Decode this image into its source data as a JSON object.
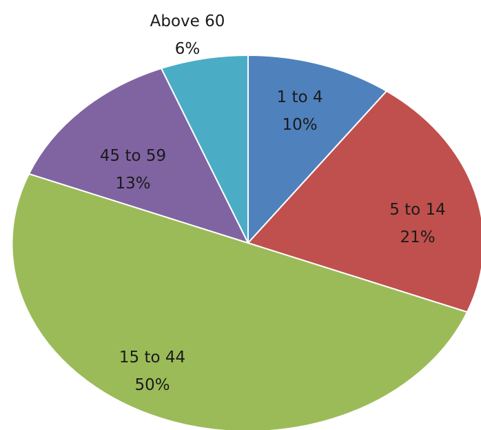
{
  "chart_data": {
    "type": "pie",
    "start_angle_deg": 0,
    "direction": "clockwise",
    "legend": "none",
    "slices": [
      {
        "category": "1 to 4",
        "percent_label": "10%",
        "value": 10,
        "color": "#4f81bd"
      },
      {
        "category": "5 to 14",
        "percent_label": "21%",
        "value": 21,
        "color": "#c0504d"
      },
      {
        "category": "15 to 44",
        "percent_label": "50%",
        "value": 50,
        "color": "#9bbb59"
      },
      {
        "category": "45 to 59",
        "percent_label": "13%",
        "value": 13,
        "color": "#8064a2"
      },
      {
        "category": "Above 60",
        "percent_label": "6%",
        "value": 6,
        "color": "#4bacc6"
      }
    ]
  }
}
